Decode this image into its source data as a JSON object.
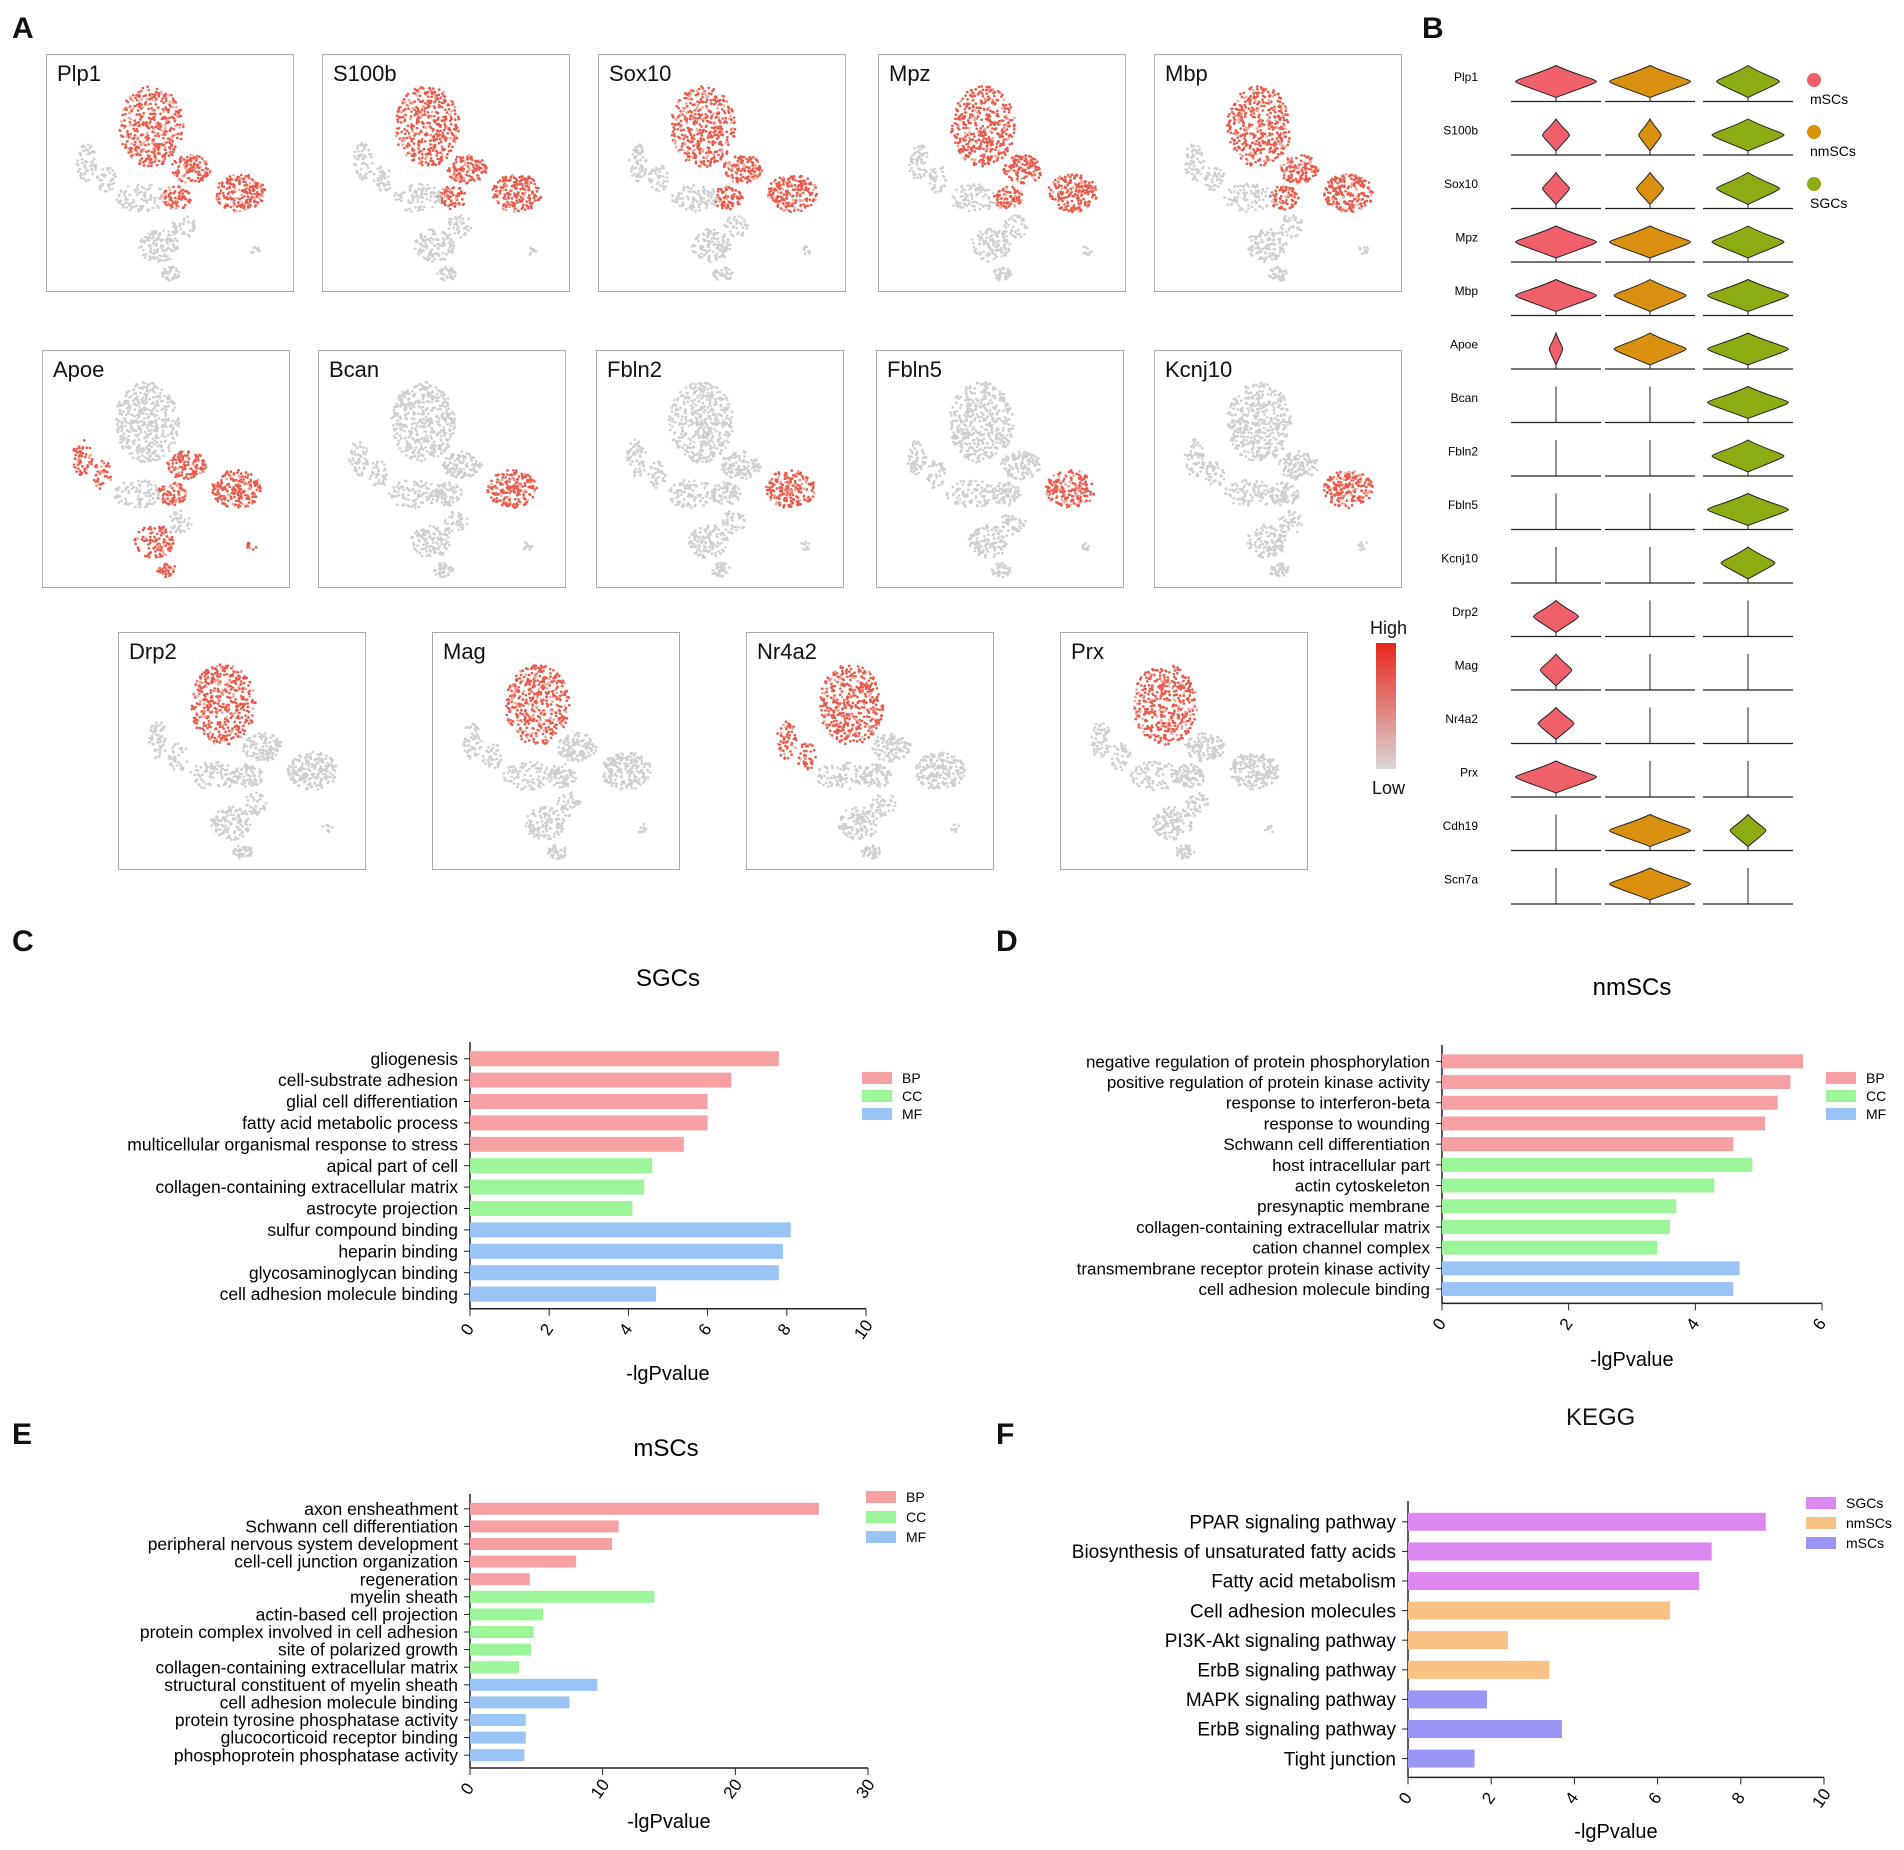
{
  "panel_labels": {
    "A": "A",
    "B": "B",
    "C": "C",
    "D": "D",
    "E": "E",
    "F": "F"
  },
  "panel_a": {
    "genes": [
      "Plp1",
      "S100b",
      "Sox10",
      "Mpz",
      "Mbp",
      "Apoe",
      "Bcan",
      "Fbln2",
      "Fbln5",
      "Kcnj10",
      "Drp2",
      "Mag",
      "Nr4a2",
      "Prx"
    ],
    "expressed_in": {
      "Plp1": [
        "msc",
        "nmsc",
        "sgc"
      ],
      "S100b": [
        "msc",
        "nmsc",
        "sgc"
      ],
      "Sox10": [
        "msc",
        "nmsc",
        "sgc"
      ],
      "Mpz": [
        "msc",
        "nmsc",
        "sgc"
      ],
      "Mbp": [
        "msc",
        "nmsc",
        "sgc"
      ],
      "Apoe": [
        "left",
        "nmsc",
        "sgc",
        "bottom"
      ],
      "Bcan": [
        "sgc"
      ],
      "Fbln2": [
        "sgc"
      ],
      "Fbln5": [
        "sgc"
      ],
      "Kcnj10": [
        "sgc"
      ],
      "Drp2": [
        "msc"
      ],
      "Mag": [
        "msc"
      ],
      "Nr4a2": [
        "msc",
        "left"
      ],
      "Prx": [
        "msc"
      ]
    },
    "colorbar": {
      "high": "High",
      "low": "Low",
      "high_color": "#e8261a",
      "low_color": "#d8d8d8"
    }
  },
  "panel_b": {
    "genes": [
      "Plp1",
      "S100b",
      "Sox10",
      "Mpz",
      "Mbp",
      "Apoe",
      "Bcan",
      "Fbln2",
      "Fbln5",
      "Kcnj10",
      "Drp2",
      "Mag",
      "Nr4a2",
      "Prx",
      "Cdh19",
      "Scn7a"
    ],
    "groups": [
      "mSCs",
      "nmSCs",
      "SGCs"
    ],
    "group_colors": [
      "#f0606a",
      "#d9900f",
      "#8cac14"
    ],
    "expression_widths": [
      [
        0.9,
        0.9,
        0.7
      ],
      [
        0.3,
        0.25,
        0.8
      ],
      [
        0.3,
        0.3,
        0.7
      ],
      [
        0.9,
        0.9,
        0.8
      ],
      [
        0.9,
        0.8,
        0.9
      ],
      [
        0.15,
        0.8,
        0.9
      ],
      [
        0,
        0,
        0.9
      ],
      [
        0,
        0,
        0.8
      ],
      [
        0,
        0,
        0.9
      ],
      [
        0,
        0,
        0.6
      ],
      [
        0.5,
        0,
        0
      ],
      [
        0.35,
        0,
        0
      ],
      [
        0.4,
        0,
        0
      ],
      [
        0.9,
        0,
        0
      ],
      [
        0,
        0.9,
        0.4
      ],
      [
        0,
        0.9,
        0
      ]
    ],
    "legend": [
      "mSCs",
      "nmSCs",
      "SGCs"
    ]
  },
  "chart_data": [
    {
      "id": "C",
      "type": "bar",
      "orientation": "horizontal",
      "title": "SGCs",
      "categories": [
        "gliogenesis",
        "cell-substrate adhesion",
        "glial cell differentiation",
        "fatty acid metabolic process",
        "multicellular organismal response to stress",
        "apical part of cell",
        "collagen-containing extracellular matrix",
        "astrocyte projection",
        "sulfur compound binding",
        "heparin binding",
        "glycosaminoglycan binding",
        "cell adhesion molecule binding"
      ],
      "values": [
        7.8,
        6.6,
        6.0,
        6.0,
        5.4,
        4.6,
        4.4,
        4.1,
        8.1,
        7.9,
        7.8,
        4.7
      ],
      "groups": [
        "BP",
        "BP",
        "BP",
        "BP",
        "BP",
        "CC",
        "CC",
        "CC",
        "MF",
        "MF",
        "MF",
        "MF"
      ],
      "legend": [
        "BP",
        "CC",
        "MF"
      ],
      "xlabel": "-lgPvalue",
      "xlim": [
        0,
        10
      ],
      "xticks": [
        0,
        2,
        4,
        6,
        8,
        10
      ]
    },
    {
      "id": "D",
      "type": "bar",
      "orientation": "horizontal",
      "title": "nmSCs",
      "categories": [
        "negative regulation of protein phosphorylation",
        "positive regulation of protein kinase activity",
        "response to interferon-beta",
        "response to wounding",
        "Schwann cell differentiation",
        "host intracellular part",
        "actin cytoskeleton",
        "presynaptic membrane",
        "collagen-containing extracellular matrix",
        "cation channel complex",
        "transmembrane receptor protein kinase activity",
        "cell adhesion molecule binding"
      ],
      "values": [
        5.7,
        5.5,
        5.3,
        5.1,
        4.6,
        4.9,
        4.3,
        3.7,
        3.6,
        3.4,
        4.7,
        4.6
      ],
      "groups": [
        "BP",
        "BP",
        "BP",
        "BP",
        "BP",
        "CC",
        "CC",
        "CC",
        "CC",
        "CC",
        "MF",
        "MF"
      ],
      "legend": [
        "BP",
        "CC",
        "MF"
      ],
      "xlabel": "-lgPvalue",
      "xlim": [
        0,
        6
      ],
      "xticks": [
        0,
        2,
        4,
        6
      ]
    },
    {
      "id": "E",
      "type": "bar",
      "orientation": "horizontal",
      "title": "mSCs",
      "categories": [
        "axon ensheathment",
        "Schwann cell differentiation",
        "peripheral nervous system development",
        "cell-cell junction organization",
        "regeneration",
        "myelin sheath",
        "actin-based cell projection",
        "protein complex involved in cell adhesion",
        "site of polarized growth",
        "collagen-containing extracellular matrix",
        "structural constituent of myelin sheath",
        "cell adhesion molecule binding",
        "protein tyrosine phosphatase activity",
        "glucocorticoid receptor binding",
        "phosphoprotein phosphatase activity"
      ],
      "values": [
        26.3,
        11.2,
        10.7,
        8.0,
        4.5,
        13.9,
        5.5,
        4.8,
        4.6,
        3.7,
        9.6,
        7.5,
        4.2,
        4.2,
        4.1
      ],
      "groups": [
        "BP",
        "BP",
        "BP",
        "BP",
        "BP",
        "CC",
        "CC",
        "CC",
        "CC",
        "CC",
        "MF",
        "MF",
        "MF",
        "MF",
        "MF"
      ],
      "legend": [
        "BP",
        "CC",
        "MF"
      ],
      "xlabel": "-lgPvalue",
      "xlim": [
        0,
        30
      ],
      "xticks": [
        0,
        10,
        20,
        30
      ]
    },
    {
      "id": "F",
      "type": "bar",
      "orientation": "horizontal",
      "title": "KEGG",
      "categories": [
        "PPAR signaling pathway",
        "Biosynthesis of unsaturated fatty acids",
        "Fatty acid metabolism",
        "Cell adhesion molecules",
        "PI3K-Akt signaling pathway",
        "ErbB signaling pathway",
        "MAPK signaling pathway",
        "ErbB signaling pathway",
        "Tight junction"
      ],
      "values": [
        8.6,
        7.3,
        7.0,
        6.3,
        2.4,
        3.4,
        1.9,
        3.7,
        1.6
      ],
      "groups": [
        "SGCs",
        "SGCs",
        "SGCs",
        "nmSCs",
        "nmSCs",
        "nmSCs",
        "mSCs",
        "mSCs",
        "mSCs"
      ],
      "legend": [
        "SGCs",
        "nmSCs",
        "mSCs"
      ],
      "xlabel": "-lgPvalue",
      "xlim": [
        0,
        10
      ],
      "xticks": [
        0,
        2,
        4,
        6,
        8,
        10
      ]
    }
  ],
  "colors": {
    "BP": "#f6a0a3",
    "CC": "#9df59a",
    "MF": "#99c4f5",
    "SGCs": "#dd88f0",
    "nmSCs": "#f9c282",
    "mSCs": "#9b95f3"
  }
}
